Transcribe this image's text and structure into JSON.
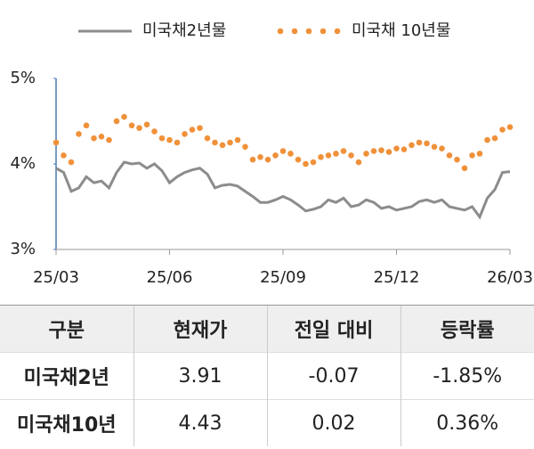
{
  "chart_data": {
    "type": "line",
    "categories": [
      "25/03",
      null,
      null,
      null,
      null,
      null,
      null,
      null,
      null,
      null,
      null,
      null,
      null,
      null,
      null,
      "25/06",
      null,
      null,
      null,
      null,
      null,
      null,
      null,
      null,
      null,
      null,
      null,
      null,
      null,
      null,
      "25/09",
      null,
      null,
      null,
      null,
      null,
      null,
      null,
      null,
      null,
      null,
      null,
      null,
      null,
      null,
      "25/12",
      null,
      null,
      null,
      null,
      null,
      null,
      null,
      null,
      null,
      null,
      null,
      null,
      null,
      null,
      "26/03"
    ],
    "ylim": [
      3,
      5
    ],
    "yticks": [
      {
        "value": 3,
        "label": "3%"
      },
      {
        "value": 4,
        "label": "4%"
      },
      {
        "value": 5,
        "label": "5%"
      }
    ],
    "series": [
      {
        "name": "미국채2년물",
        "color": "#8c8c8c",
        "style": "line",
        "values": [
          3.95,
          3.9,
          3.68,
          3.72,
          3.85,
          3.78,
          3.8,
          3.72,
          3.9,
          4.02,
          4.0,
          4.01,
          3.95,
          4.0,
          3.92,
          3.78,
          3.85,
          3.9,
          3.93,
          3.95,
          3.88,
          3.72,
          3.75,
          3.76,
          3.74,
          3.68,
          3.62,
          3.55,
          3.55,
          3.58,
          3.62,
          3.58,
          3.52,
          3.45,
          3.47,
          3.5,
          3.58,
          3.55,
          3.6,
          3.5,
          3.52,
          3.58,
          3.55,
          3.48,
          3.5,
          3.46,
          3.48,
          3.5,
          3.56,
          3.58,
          3.55,
          3.58,
          3.5,
          3.48,
          3.46,
          3.5,
          3.38,
          3.6,
          3.7,
          3.9,
          3.91
        ]
      },
      {
        "name": "미국채 10년물",
        "color": "#f0913a",
        "style": "dots",
        "values": [
          4.25,
          4.1,
          4.02,
          4.35,
          4.45,
          4.3,
          4.32,
          4.28,
          4.5,
          4.55,
          4.45,
          4.42,
          4.46,
          4.38,
          4.3,
          4.28,
          4.25,
          4.35,
          4.4,
          4.42,
          4.3,
          4.25,
          4.22,
          4.25,
          4.28,
          4.2,
          4.05,
          4.08,
          4.05,
          4.1,
          4.15,
          4.12,
          4.05,
          4.0,
          4.02,
          4.08,
          4.1,
          4.12,
          4.15,
          4.1,
          4.02,
          4.12,
          4.15,
          4.16,
          4.14,
          4.18,
          4.17,
          4.22,
          4.25,
          4.24,
          4.2,
          4.18,
          4.1,
          4.05,
          3.95,
          4.1,
          4.12,
          4.28,
          4.3,
          4.4,
          4.43
        ]
      }
    ]
  },
  "table": {
    "header": [
      "구분",
      "현재가",
      "전일 대비",
      "등락률"
    ],
    "rows": [
      [
        "미국채2년",
        "3.91",
        "-0.07",
        "-1.85%"
      ],
      [
        "미국채10년",
        "4.43",
        "0.02",
        "0.36%"
      ]
    ]
  }
}
